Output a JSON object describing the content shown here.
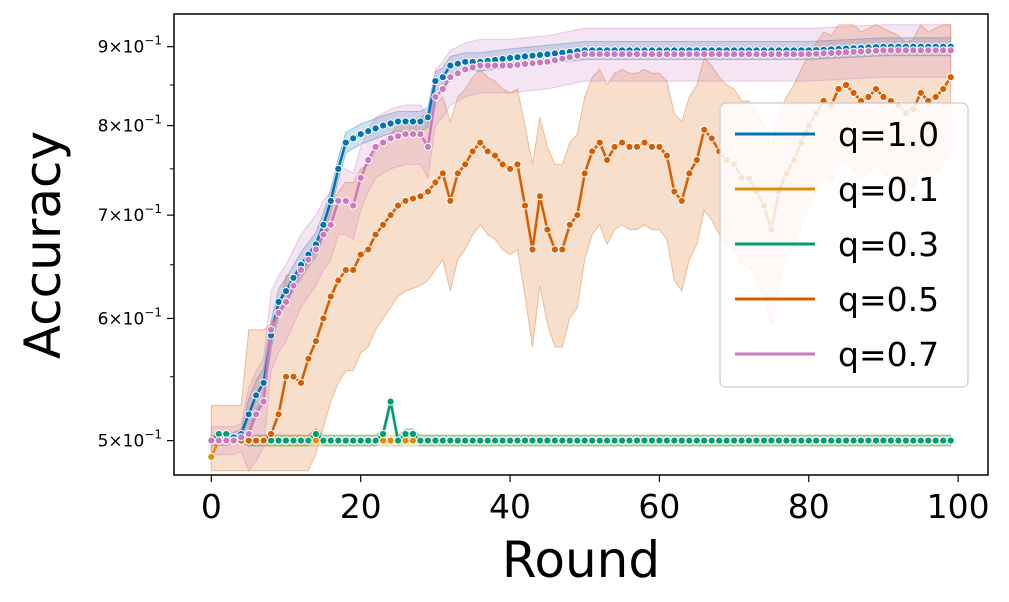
{
  "chart_data": {
    "type": "line",
    "title": "",
    "xlabel": "Round",
    "ylabel": "Accuracy",
    "xlim": [
      -5,
      104
    ],
    "ylim": [
      0.475,
      0.945
    ],
    "yscale": "log",
    "grid": false,
    "legend_position": "center-right",
    "x_ticks": [
      0,
      20,
      40,
      60,
      80,
      100
    ],
    "x_tick_labels": [
      "0",
      "20",
      "40",
      "60",
      "80",
      "100"
    ],
    "y_ticks": [
      0.5,
      0.6,
      0.7,
      0.8,
      0.9
    ],
    "y_tick_labels": [
      {
        "mant": "5",
        "exp": "−1"
      },
      {
        "mant": "6",
        "exp": "−1"
      },
      {
        "mant": "7",
        "exp": "−1"
      },
      {
        "mant": "8",
        "exp": "−1"
      },
      {
        "mant": "9",
        "exp": "−1"
      }
    ],
    "series": [
      {
        "name": "q=1.0",
        "color": "#0173b2",
        "keypoints": [
          [
            0,
            0.5
          ],
          [
            2,
            0.5
          ],
          [
            4,
            0.505
          ],
          [
            5,
            0.52
          ],
          [
            6,
            0.535
          ],
          [
            7,
            0.545
          ],
          [
            8,
            0.585
          ],
          [
            9,
            0.615
          ],
          [
            10,
            0.625
          ],
          [
            12,
            0.65
          ],
          [
            14,
            0.67
          ],
          [
            15,
            0.69
          ],
          [
            16,
            0.715
          ],
          [
            17,
            0.75
          ],
          [
            18,
            0.78
          ],
          [
            20,
            0.79
          ],
          [
            23,
            0.8
          ],
          [
            25,
            0.805
          ],
          [
            28,
            0.805
          ],
          [
            29,
            0.81
          ],
          [
            30,
            0.855
          ],
          [
            31,
            0.86
          ],
          [
            32,
            0.875
          ],
          [
            34,
            0.88
          ],
          [
            36,
            0.88
          ],
          [
            40,
            0.885
          ],
          [
            45,
            0.89
          ],
          [
            50,
            0.895
          ],
          [
            60,
            0.895
          ],
          [
            70,
            0.895
          ],
          [
            80,
            0.895
          ],
          [
            90,
            0.9
          ],
          [
            99,
            0.9
          ]
        ],
        "band": 0.012
      },
      {
        "name": "q=0.1",
        "color": "#de8f05",
        "keypoints": [
          [
            0,
            0.488
          ],
          [
            1,
            0.5
          ],
          [
            2,
            0.5
          ],
          [
            99,
            0.5
          ]
        ],
        "band": 0.004
      },
      {
        "name": "q=0.3",
        "color": "#029e73",
        "keypoints": [
          [
            0,
            0.5
          ],
          [
            1,
            0.505
          ],
          [
            2,
            0.505
          ],
          [
            3,
            0.5
          ],
          [
            13,
            0.5
          ],
          [
            14,
            0.505
          ],
          [
            15,
            0.5
          ],
          [
            22,
            0.5
          ],
          [
            23,
            0.505
          ],
          [
            24,
            0.53
          ],
          [
            25,
            0.5
          ],
          [
            26,
            0.505
          ],
          [
            27,
            0.505
          ],
          [
            28,
            0.5
          ],
          [
            99,
            0.5
          ]
        ],
        "band": 0.004
      },
      {
        "name": "q=0.5",
        "color": "#d55e00",
        "keypoints": [
          [
            0,
            0.5
          ],
          [
            6,
            0.5
          ],
          [
            7,
            0.5
          ],
          [
            8,
            0.505
          ],
          [
            9,
            0.52
          ],
          [
            10,
            0.55
          ],
          [
            11,
            0.55
          ],
          [
            12,
            0.545
          ],
          [
            13,
            0.565
          ],
          [
            14,
            0.58
          ],
          [
            15,
            0.6
          ],
          [
            16,
            0.62
          ],
          [
            17,
            0.635
          ],
          [
            18,
            0.645
          ],
          [
            19,
            0.645
          ],
          [
            20,
            0.66
          ],
          [
            21,
            0.665
          ],
          [
            22,
            0.68
          ],
          [
            23,
            0.69
          ],
          [
            24,
            0.7
          ],
          [
            25,
            0.71
          ],
          [
            26,
            0.715
          ],
          [
            28,
            0.72
          ],
          [
            29,
            0.725
          ],
          [
            30,
            0.735
          ],
          [
            31,
            0.745
          ],
          [
            32,
            0.715
          ],
          [
            33,
            0.745
          ],
          [
            34,
            0.755
          ],
          [
            35,
            0.77
          ],
          [
            36,
            0.78
          ],
          [
            37,
            0.77
          ],
          [
            38,
            0.765
          ],
          [
            39,
            0.755
          ],
          [
            40,
            0.75
          ],
          [
            41,
            0.755
          ],
          [
            42,
            0.71
          ],
          [
            43,
            0.665
          ],
          [
            44,
            0.72
          ],
          [
            45,
            0.685
          ],
          [
            46,
            0.665
          ],
          [
            47,
            0.665
          ],
          [
            48,
            0.69
          ],
          [
            49,
            0.7
          ],
          [
            50,
            0.745
          ],
          [
            51,
            0.77
          ],
          [
            52,
            0.78
          ],
          [
            53,
            0.76
          ],
          [
            54,
            0.775
          ],
          [
            55,
            0.78
          ],
          [
            56,
            0.775
          ],
          [
            57,
            0.775
          ],
          [
            58,
            0.78
          ],
          [
            59,
            0.775
          ],
          [
            60,
            0.775
          ],
          [
            61,
            0.765
          ],
          [
            62,
            0.725
          ],
          [
            63,
            0.715
          ],
          [
            64,
            0.745
          ],
          [
            65,
            0.76
          ],
          [
            66,
            0.795
          ],
          [
            67,
            0.785
          ],
          [
            68,
            0.77
          ],
          [
            69,
            0.76
          ],
          [
            70,
            0.755
          ],
          [
            71,
            0.74
          ],
          [
            72,
            0.74
          ],
          [
            73,
            0.725
          ],
          [
            74,
            0.71
          ],
          [
            75,
            0.685
          ],
          [
            76,
            0.725
          ],
          [
            77,
            0.745
          ],
          [
            78,
            0.76
          ],
          [
            79,
            0.78
          ],
          [
            80,
            0.8
          ],
          [
            81,
            0.815
          ],
          [
            82,
            0.83
          ],
          [
            83,
            0.825
          ],
          [
            84,
            0.845
          ],
          [
            85,
            0.85
          ],
          [
            86,
            0.84
          ],
          [
            87,
            0.83
          ],
          [
            88,
            0.835
          ],
          [
            89,
            0.845
          ],
          [
            90,
            0.835
          ],
          [
            91,
            0.83
          ],
          [
            92,
            0.825
          ],
          [
            93,
            0.815
          ],
          [
            94,
            0.82
          ],
          [
            95,
            0.84
          ],
          [
            96,
            0.83
          ],
          [
            97,
            0.835
          ],
          [
            98,
            0.845
          ],
          [
            99,
            0.86
          ]
        ],
        "band": 0.09
      },
      {
        "name": "q=0.7",
        "color": "#cc78bc",
        "keypoints": [
          [
            0,
            0.5
          ],
          [
            3,
            0.5
          ],
          [
            5,
            0.505
          ],
          [
            6,
            0.52
          ],
          [
            7,
            0.53
          ],
          [
            8,
            0.59
          ],
          [
            9,
            0.605
          ],
          [
            10,
            0.615
          ],
          [
            12,
            0.645
          ],
          [
            13,
            0.655
          ],
          [
            14,
            0.665
          ],
          [
            15,
            0.68
          ],
          [
            16,
            0.69
          ],
          [
            17,
            0.715
          ],
          [
            18,
            0.715
          ],
          [
            19,
            0.71
          ],
          [
            20,
            0.74
          ],
          [
            21,
            0.76
          ],
          [
            22,
            0.775
          ],
          [
            24,
            0.785
          ],
          [
            26,
            0.79
          ],
          [
            28,
            0.79
          ],
          [
            29,
            0.775
          ],
          [
            30,
            0.835
          ],
          [
            31,
            0.845
          ],
          [
            32,
            0.86
          ],
          [
            34,
            0.87
          ],
          [
            36,
            0.875
          ],
          [
            40,
            0.875
          ],
          [
            45,
            0.88
          ],
          [
            50,
            0.89
          ],
          [
            60,
            0.89
          ],
          [
            70,
            0.89
          ],
          [
            80,
            0.89
          ],
          [
            90,
            0.895
          ],
          [
            99,
            0.895
          ]
        ],
        "band": 0.035
      }
    ]
  }
}
